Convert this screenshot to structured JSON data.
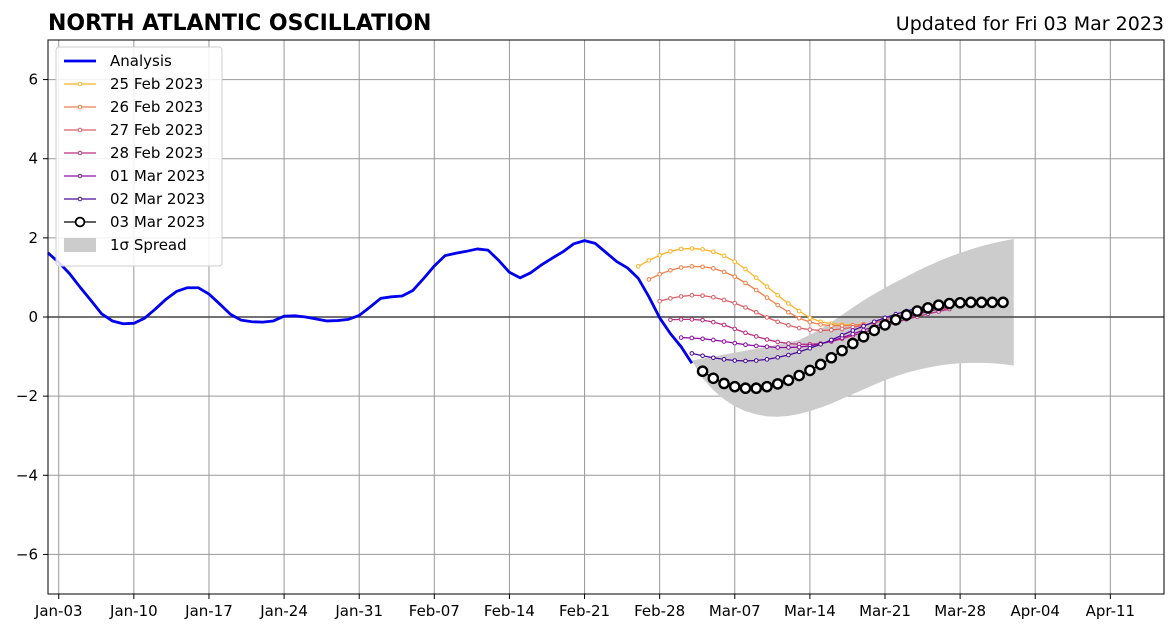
{
  "chart_data": {
    "type": "line",
    "title": "NORTH ATLANTIC OSCILLATION",
    "subtitle": "Updated for Fri 03 Mar 2023",
    "xlabel": "",
    "ylabel": "",
    "x_range": [
      "2023-01-02",
      "2023-04-16"
    ],
    "ylim": [
      -7,
      7
    ],
    "grid": true,
    "legend_position": "upper-left",
    "x_ticks": [
      {
        "date": "2023-01-03",
        "label": "Jan-03"
      },
      {
        "date": "2023-01-10",
        "label": "Jan-10"
      },
      {
        "date": "2023-01-17",
        "label": "Jan-17"
      },
      {
        "date": "2023-01-24",
        "label": "Jan-24"
      },
      {
        "date": "2023-01-31",
        "label": "Jan-31"
      },
      {
        "date": "2023-02-07",
        "label": "Feb-07"
      },
      {
        "date": "2023-02-14",
        "label": "Feb-14"
      },
      {
        "date": "2023-02-21",
        "label": "Feb-21"
      },
      {
        "date": "2023-02-28",
        "label": "Feb-28"
      },
      {
        "date": "2023-03-07",
        "label": "Mar-07"
      },
      {
        "date": "2023-03-14",
        "label": "Mar-14"
      },
      {
        "date": "2023-03-21",
        "label": "Mar-21"
      },
      {
        "date": "2023-03-28",
        "label": "Mar-28"
      },
      {
        "date": "2023-04-04",
        "label": "Apr-04"
      },
      {
        "date": "2023-04-11",
        "label": "Apr-11"
      }
    ],
    "y_ticks": [
      {
        "value": 6,
        "label": "6"
      },
      {
        "value": 4,
        "label": "4"
      },
      {
        "value": 2,
        "label": "2"
      },
      {
        "value": 0,
        "label": "0"
      },
      {
        "value": -2,
        "label": "−2"
      },
      {
        "value": -4,
        "label": "−4"
      },
      {
        "value": -6,
        "label": "−6"
      }
    ],
    "series": [
      {
        "name": "Analysis",
        "color": "#0000ee",
        "style": "line",
        "points": [
          [
            "2023-01-02",
            1.62
          ],
          [
            "2023-01-03",
            1.38
          ],
          [
            "2023-01-04",
            1.1
          ],
          [
            "2023-01-05",
            0.75
          ],
          [
            "2023-01-06",
            0.42
          ],
          [
            "2023-01-07",
            0.08
          ],
          [
            "2023-01-08",
            -0.1
          ],
          [
            "2023-01-09",
            -0.17
          ],
          [
            "2023-01-10",
            -0.16
          ],
          [
            "2023-01-11",
            -0.03
          ],
          [
            "2023-01-12",
            0.2
          ],
          [
            "2023-01-13",
            0.45
          ],
          [
            "2023-01-14",
            0.65
          ],
          [
            "2023-01-15",
            0.74
          ],
          [
            "2023-01-16",
            0.74
          ],
          [
            "2023-01-17",
            0.58
          ],
          [
            "2023-01-18",
            0.33
          ],
          [
            "2023-01-19",
            0.07
          ],
          [
            "2023-01-20",
            -0.08
          ],
          [
            "2023-01-21",
            -0.12
          ],
          [
            "2023-01-22",
            -0.13
          ],
          [
            "2023-01-23",
            -0.1
          ],
          [
            "2023-01-24",
            0.02
          ],
          [
            "2023-01-25",
            0.03
          ],
          [
            "2023-01-26",
            0.0
          ],
          [
            "2023-01-27",
            -0.05
          ],
          [
            "2023-01-28",
            -0.1
          ],
          [
            "2023-01-29",
            -0.09
          ],
          [
            "2023-01-30",
            -0.06
          ],
          [
            "2023-01-31",
            0.04
          ],
          [
            "2023-02-01",
            0.25
          ],
          [
            "2023-02-02",
            0.47
          ],
          [
            "2023-02-03",
            0.51
          ],
          [
            "2023-02-04",
            0.53
          ],
          [
            "2023-02-05",
            0.67
          ],
          [
            "2023-02-06",
            0.97
          ],
          [
            "2023-02-07",
            1.29
          ],
          [
            "2023-02-08",
            1.55
          ],
          [
            "2023-02-09",
            1.61
          ],
          [
            "2023-02-10",
            1.66
          ],
          [
            "2023-02-11",
            1.72
          ],
          [
            "2023-02-12",
            1.69
          ],
          [
            "2023-02-13",
            1.43
          ],
          [
            "2023-02-14",
            1.13
          ],
          [
            "2023-02-15",
            0.99
          ],
          [
            "2023-02-16",
            1.12
          ],
          [
            "2023-02-17",
            1.32
          ],
          [
            "2023-02-18",
            1.49
          ],
          [
            "2023-02-19",
            1.65
          ],
          [
            "2023-02-20",
            1.85
          ],
          [
            "2023-02-21",
            1.93
          ],
          [
            "2023-02-22",
            1.86
          ],
          [
            "2023-02-23",
            1.63
          ],
          [
            "2023-02-24",
            1.4
          ],
          [
            "2023-02-25",
            1.24
          ],
          [
            "2023-02-26",
            0.98
          ],
          [
            "2023-02-27",
            0.51
          ],
          [
            "2023-02-28",
            -0.02
          ],
          [
            "2023-03-01",
            -0.42
          ],
          [
            "2023-03-02",
            -0.75
          ],
          [
            "2023-03-03",
            -1.17
          ]
        ]
      },
      {
        "name": "25 Feb 2023",
        "color": "#fcb428",
        "style": "marker-line",
        "start": "2023-02-26",
        "values": [
          1.28,
          1.43,
          1.56,
          1.66,
          1.72,
          1.73,
          1.71,
          1.65,
          1.55,
          1.4,
          1.21,
          0.99,
          0.77,
          0.55,
          0.34,
          0.15,
          -0.02,
          -0.12,
          -0.17,
          -0.19,
          -0.2,
          -0.19
        ]
      },
      {
        "name": "26 Feb 2023",
        "color": "#f07f4a",
        "style": "marker-line",
        "start": "2023-02-27",
        "values": [
          0.95,
          1.08,
          1.18,
          1.25,
          1.28,
          1.27,
          1.23,
          1.14,
          1.02,
          0.86,
          0.68,
          0.49,
          0.3,
          0.12,
          -0.03,
          -0.13,
          -0.19,
          -0.22,
          -0.22,
          -0.21,
          -0.18
        ]
      },
      {
        "name": "27 Feb 2023",
        "color": "#dd5f6a",
        "style": "marker-line",
        "start": "2023-02-28",
        "values": [
          0.4,
          0.47,
          0.52,
          0.55,
          0.54,
          0.5,
          0.43,
          0.35,
          0.24,
          0.12,
          -0.01,
          -0.12,
          -0.21,
          -0.28,
          -0.32,
          -0.34,
          -0.33,
          -0.3,
          -0.26,
          -0.21,
          -0.15,
          -0.08,
          0.0,
          0.07,
          0.12,
          0.16,
          0.19,
          0.22
        ]
      },
      {
        "name": "28 Feb 2023",
        "color": "#b9317f",
        "style": "marker-line",
        "start": "2023-03-01",
        "values": [
          -0.07,
          -0.06,
          -0.06,
          -0.08,
          -0.13,
          -0.2,
          -0.3,
          -0.4,
          -0.49,
          -0.57,
          -0.63,
          -0.67,
          -0.69,
          -0.69,
          -0.67,
          -0.62,
          -0.55,
          -0.47,
          -0.39,
          -0.31,
          -0.22,
          -0.14,
          -0.06,
          0.01,
          0.08,
          0.14,
          0.2
        ]
      },
      {
        "name": "01 Mar 2023",
        "color": "#8c0fa3",
        "style": "marker-line",
        "start": "2023-03-02",
        "values": [
          -0.52,
          -0.53,
          -0.55,
          -0.58,
          -0.62,
          -0.66,
          -0.7,
          -0.73,
          -0.75,
          -0.77,
          -0.77,
          -0.76,
          -0.73,
          -0.68,
          -0.61,
          -0.52,
          -0.43,
          -0.33,
          -0.24,
          -0.15,
          -0.07,
          0.0,
          0.07,
          0.14,
          0.2,
          0.26
        ]
      },
      {
        "name": "02 Mar 2023",
        "color": "#4a0a98",
        "style": "marker-line",
        "start": "2023-03-03",
        "values": [
          -0.92,
          -0.98,
          -1.03,
          -1.07,
          -1.1,
          -1.11,
          -1.1,
          -1.07,
          -1.02,
          -0.96,
          -0.88,
          -0.79,
          -0.69,
          -0.58,
          -0.46,
          -0.34,
          -0.23,
          -0.12,
          -0.02,
          0.07,
          0.15,
          0.22,
          0.28
        ]
      },
      {
        "name": "03 Mar 2023",
        "color": "#000000",
        "style": "circles",
        "start": "2023-03-04",
        "values": [
          -1.37,
          -1.55,
          -1.68,
          -1.76,
          -1.8,
          -1.8,
          -1.76,
          -1.69,
          -1.6,
          -1.48,
          -1.35,
          -1.2,
          -1.03,
          -0.85,
          -0.67,
          -0.5,
          -0.34,
          -0.2,
          -0.07,
          0.05,
          0.15,
          0.23,
          0.3,
          0.34,
          0.36,
          0.37,
          0.37,
          0.37,
          0.37
        ]
      }
    ],
    "spread": {
      "name": "1σ Spread",
      "color": "#cccccc",
      "start": "2023-03-03",
      "upper": [
        -1.1,
        -1.05,
        -1.0,
        -0.95,
        -0.9,
        -0.85,
        -0.8,
        -0.75,
        -0.7,
        -0.64,
        -0.58,
        -0.45,
        -0.3,
        -0.13,
        0.05,
        0.24,
        0.42,
        0.58,
        0.74,
        0.88,
        1.02,
        1.16,
        1.29,
        1.41,
        1.52,
        1.62,
        1.71,
        1.79,
        1.86,
        1.92,
        1.97
      ],
      "lower": [
        -1.1,
        -1.55,
        -1.85,
        -2.08,
        -2.26,
        -2.38,
        -2.46,
        -2.51,
        -2.52,
        -2.5,
        -2.45,
        -2.38,
        -2.29,
        -2.19,
        -2.07,
        -1.95,
        -1.83,
        -1.71,
        -1.6,
        -1.5,
        -1.41,
        -1.34,
        -1.28,
        -1.23,
        -1.19,
        -1.17,
        -1.16,
        -1.16,
        -1.17,
        -1.19,
        -1.23
      ]
    }
  }
}
